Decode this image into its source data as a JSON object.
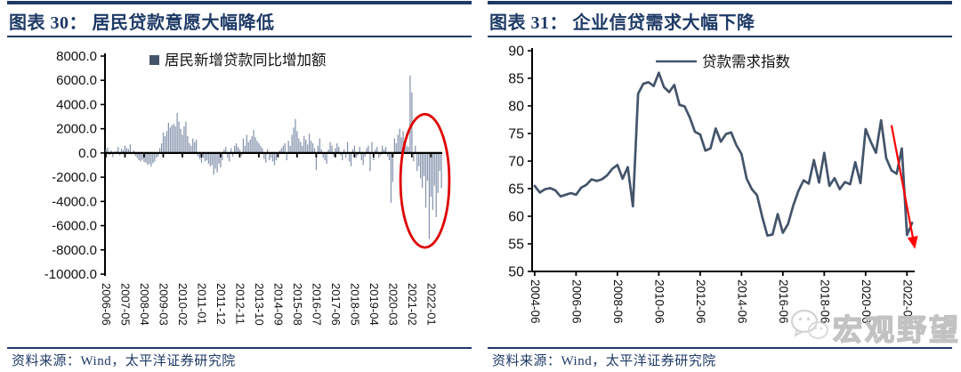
{
  "panels": [
    {
      "figure_title": "图表 30： 居民贷款意愿大幅降低",
      "source": "资料来源：Wind，太平洋证券研究院"
    },
    {
      "figure_title": "图表 31： 企业信贷需求大幅下降",
      "source": "资料来源：Wind，太平洋证券研究院"
    }
  ],
  "watermark": {
    "text": "宏观野望",
    "icon": "wechat-icon"
  },
  "colors": {
    "navy": "#1E3A66",
    "bar": "#8291AB",
    "legend_square": "#44546A",
    "line": "#44546A",
    "axis": "#000000",
    "red_ellipse": "#DE0000",
    "red_arrow": "#FF0000",
    "watermark_gray": "#C2C2C2"
  },
  "chart_data": [
    {
      "type": "bar",
      "title": "居民贷款意愿大幅降低",
      "legend": "居民新增贷款同比增加额",
      "x_start": "2006-06",
      "x_freq": "monthly",
      "x_tick_interval": 11,
      "x_tick_labels": [
        "2006-06",
        "2007-05",
        "2008-04",
        "2009-03",
        "2010-02",
        "2011-01",
        "2011-12",
        "2012-11",
        "2013-10",
        "2014-09",
        "2015-08",
        "2016-07",
        "2017-06",
        "2018-05",
        "2019-04",
        "2020-03",
        "2021-02",
        "2022-01"
      ],
      "ylim": [
        -10000,
        8000
      ],
      "y_tick_step": 2000,
      "y_tick_labels": [
        "8000.0",
        "6000.0",
        "4000.0",
        "2000.0",
        "0.0",
        "-2000.0",
        "-4000.0",
        "-6000.0",
        "-8000.0",
        "-10000.0"
      ],
      "grid": false,
      "legend_position": "top-center",
      "values": [
        300,
        450,
        -150,
        200,
        -350,
        100,
        150,
        500,
        -200,
        350,
        250,
        600,
        400,
        300,
        700,
        -100,
        200,
        -250,
        -400,
        -600,
        -700,
        -550,
        -750,
        -800,
        -1000,
        -900,
        -1100,
        -850,
        -700,
        -400,
        -300,
        400,
        800,
        1700,
        1400,
        1800,
        2500,
        2100,
        2300,
        2400,
        2200,
        3300,
        2600,
        2000,
        1500,
        2200,
        2600,
        1400,
        800,
        600,
        1200,
        900,
        1100,
        -300,
        -500,
        -800,
        -400,
        -700,
        -600,
        -900,
        -1100,
        -1000,
        -1800,
        -1300,
        -1600,
        -900,
        -1200,
        -600,
        300,
        500,
        -400,
        -700,
        400,
        -300,
        600,
        800,
        500,
        300,
        -200,
        1200,
        600,
        1500,
        900,
        1100,
        1400,
        1900,
        1300,
        1000,
        800,
        600,
        400,
        -500,
        -800,
        300,
        -600,
        -400,
        -700,
        -1000,
        -600,
        -300,
        200,
        400,
        600,
        800,
        -600,
        1000,
        600,
        1500,
        2100,
        2800,
        1800,
        1200,
        900,
        600,
        1400,
        1100,
        700,
        1600,
        1000,
        800,
        400,
        -1400,
        600,
        1200,
        300,
        -400,
        -600,
        -900,
        300,
        900,
        600,
        -300,
        400,
        800,
        500,
        -200,
        -600,
        300,
        -400,
        900,
        -700,
        -1100,
        300,
        600,
        -400,
        -200,
        500,
        -600,
        -1000,
        -300,
        400,
        600,
        -1500,
        900,
        -600,
        300,
        500,
        -400,
        -200,
        600,
        300,
        500,
        -300,
        -600,
        -4100,
        -2400,
        1200,
        800,
        1500,
        2000,
        1300,
        1800,
        1100,
        600,
        500,
        6400,
        5000,
        -700,
        600,
        -1500,
        -1100,
        -2100,
        -2900,
        -1900,
        -4500,
        -2300,
        -7100,
        -3600,
        -4700,
        -2700,
        -5300,
        -3300,
        -1500,
        -2900
      ],
      "annotation": {
        "shape": "ellipse",
        "color": "#DE0000",
        "center_index": 183.5,
        "index_radius": 14,
        "center_value": -2300,
        "value_radius": 5500
      }
    },
    {
      "type": "line",
      "title": "企业信贷需求大幅下降",
      "legend": "贷款需求指数",
      "x_start": "2004-06",
      "x_freq": "quarterly",
      "x_tick_interval": 8,
      "x_tick_labels": [
        "2004-06",
        "2006-06",
        "2008-06",
        "2010-06",
        "2012-06",
        "2014-06",
        "2016-06",
        "2018-06",
        "2020-06",
        "2022-06"
      ],
      "ylim": [
        50,
        90
      ],
      "y_tick_step": 5,
      "y_tick_labels": [
        "90",
        "85",
        "80",
        "75",
        "70",
        "65",
        "60",
        "55",
        "50"
      ],
      "grid": false,
      "legend_position": "top-center",
      "values": [
        65.5,
        64.3,
        64.9,
        65.1,
        64.7,
        63.6,
        63.9,
        64.2,
        63.9,
        65.2,
        65.7,
        66.7,
        66.4,
        66.7,
        67.4,
        68.6,
        69.3,
        66.8,
        68.9,
        61.8,
        82.2,
        84.0,
        84.3,
        83.6,
        86.0,
        83.4,
        82.5,
        83.8,
        80.2,
        79.9,
        77.9,
        75.3,
        74.8,
        71.9,
        72.3,
        75.9,
        73.5,
        74.9,
        75.2,
        72.9,
        71.3,
        66.8,
        64.9,
        63.8,
        59.9,
        56.5,
        56.7,
        60.4,
        57.0,
        58.6,
        61.9,
        64.6,
        66.5,
        65.9,
        70.2,
        66.1,
        71.5,
        65.5,
        66.9,
        64.9,
        66.2,
        65.8,
        69.8,
        66.0,
        75.8,
        73.5,
        71.5,
        77.4,
        70.5,
        68.3,
        67.7,
        72.3,
        56.6,
        58.8
      ],
      "annotation": {
        "shape": "arrow",
        "color": "#FF0000",
        "from_index": 69,
        "from_value": 76.5,
        "to_index": 73.2,
        "to_value": 55.8
      }
    }
  ]
}
